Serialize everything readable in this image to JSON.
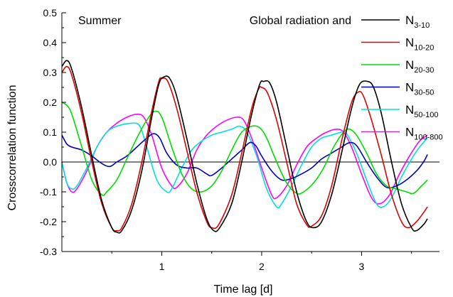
{
  "chart_data": {
    "type": "line",
    "title": "",
    "xlabel": "Time lag [d]",
    "ylabel": "Crosscorrelation function",
    "xlim": [
      0,
      3.78
    ],
    "ylim": [
      -0.3,
      0.5
    ],
    "xticks": [
      1,
      2,
      3
    ],
    "xtick_labels": [
      "1",
      "2",
      "3"
    ],
    "yticks": [
      -0.3,
      -0.2,
      -0.1,
      0.0,
      0.1,
      0.2,
      0.3,
      0.4,
      0.5
    ],
    "ytick_labels": [
      "-0.3",
      "-0.2",
      "-0.1",
      "0.0",
      "0.1",
      "0.2",
      "0.3",
      "0.4",
      "0.5"
    ],
    "zero_line": true,
    "grid": false,
    "legend": {
      "placement": "top-right",
      "heading": "Global radiation and"
    },
    "annotation": "Summer",
    "series": [
      {
        "name": "N",
        "name_sub": "3-10",
        "color": "#000000",
        "points": [
          [
            0,
            0.32
          ],
          [
            0.05,
            0.34
          ],
          [
            0.1,
            0.31
          ],
          [
            0.2,
            0.18
          ],
          [
            0.3,
            0.02
          ],
          [
            0.4,
            -0.13
          ],
          [
            0.5,
            -0.22
          ],
          [
            0.55,
            -0.235
          ],
          [
            0.6,
            -0.23
          ],
          [
            0.7,
            -0.16
          ],
          [
            0.8,
            -0.03
          ],
          [
            0.9,
            0.15
          ],
          [
            0.97,
            0.26
          ],
          [
            1.02,
            0.285
          ],
          [
            1.08,
            0.28
          ],
          [
            1.15,
            0.22
          ],
          [
            1.25,
            0.08
          ],
          [
            1.35,
            -0.07
          ],
          [
            1.45,
            -0.19
          ],
          [
            1.52,
            -0.23
          ],
          [
            1.58,
            -0.22
          ],
          [
            1.7,
            -0.14
          ],
          [
            1.8,
            0.0
          ],
          [
            1.9,
            0.16
          ],
          [
            1.98,
            0.26
          ],
          [
            2.02,
            0.27
          ],
          [
            2.08,
            0.265
          ],
          [
            2.15,
            0.2
          ],
          [
            2.25,
            0.05
          ],
          [
            2.35,
            -0.1
          ],
          [
            2.45,
            -0.2
          ],
          [
            2.52,
            -0.22
          ],
          [
            2.6,
            -0.2
          ],
          [
            2.7,
            -0.11
          ],
          [
            2.8,
            0.03
          ],
          [
            2.9,
            0.18
          ],
          [
            2.98,
            0.26
          ],
          [
            3.06,
            0.27
          ],
          [
            3.12,
            0.25
          ],
          [
            3.2,
            0.16
          ],
          [
            3.3,
            0.0
          ],
          [
            3.4,
            -0.14
          ],
          [
            3.5,
            -0.22
          ],
          [
            3.55,
            -0.23
          ],
          [
            3.62,
            -0.21
          ],
          [
            3.66,
            -0.19
          ]
        ]
      },
      {
        "name": "N",
        "name_sub": "10-20",
        "color": "#e00000",
        "points": [
          [
            0,
            0.3
          ],
          [
            0.05,
            0.32
          ],
          [
            0.1,
            0.29
          ],
          [
            0.2,
            0.16
          ],
          [
            0.3,
            0.0
          ],
          [
            0.4,
            -0.14
          ],
          [
            0.5,
            -0.22
          ],
          [
            0.55,
            -0.23
          ],
          [
            0.6,
            -0.22
          ],
          [
            0.7,
            -0.14
          ],
          [
            0.8,
            0.0
          ],
          [
            0.9,
            0.17
          ],
          [
            0.97,
            0.27
          ],
          [
            1.0,
            0.28
          ],
          [
            1.06,
            0.27
          ],
          [
            1.15,
            0.18
          ],
          [
            1.25,
            0.04
          ],
          [
            1.35,
            -0.1
          ],
          [
            1.45,
            -0.2
          ],
          [
            1.5,
            -0.22
          ],
          [
            1.57,
            -0.21
          ],
          [
            1.7,
            -0.11
          ],
          [
            1.8,
            0.03
          ],
          [
            1.9,
            0.18
          ],
          [
            1.97,
            0.245
          ],
          [
            2.0,
            0.25
          ],
          [
            2.06,
            0.23
          ],
          [
            2.15,
            0.14
          ],
          [
            2.25,
            0.0
          ],
          [
            2.35,
            -0.14
          ],
          [
            2.45,
            -0.21
          ],
          [
            2.5,
            -0.215
          ],
          [
            2.6,
            -0.18
          ],
          [
            2.7,
            -0.08
          ],
          [
            2.8,
            0.07
          ],
          [
            2.9,
            0.2
          ],
          [
            2.97,
            0.235
          ],
          [
            3.02,
            0.22
          ],
          [
            3.1,
            0.14
          ],
          [
            3.2,
            0.02
          ],
          [
            3.3,
            -0.11
          ],
          [
            3.4,
            -0.2
          ],
          [
            3.47,
            -0.22
          ],
          [
            3.55,
            -0.2
          ],
          [
            3.62,
            -0.17
          ],
          [
            3.66,
            -0.15
          ]
        ]
      },
      {
        "name": "N",
        "name_sub": "20-30",
        "color": "#00dd00",
        "points": [
          [
            0,
            0.2
          ],
          [
            0.05,
            0.19
          ],
          [
            0.1,
            0.16
          ],
          [
            0.2,
            0.05
          ],
          [
            0.3,
            -0.06
          ],
          [
            0.4,
            -0.11
          ],
          [
            0.45,
            -0.1
          ],
          [
            0.55,
            -0.06
          ],
          [
            0.65,
            0.01
          ],
          [
            0.75,
            0.08
          ],
          [
            0.85,
            0.14
          ],
          [
            0.93,
            0.17
          ],
          [
            1.0,
            0.15
          ],
          [
            1.1,
            0.05
          ],
          [
            1.2,
            -0.04
          ],
          [
            1.3,
            -0.09
          ],
          [
            1.4,
            -0.1
          ],
          [
            1.5,
            -0.08
          ],
          [
            1.6,
            -0.03
          ],
          [
            1.7,
            0.04
          ],
          [
            1.8,
            0.1
          ],
          [
            1.9,
            0.12
          ],
          [
            1.98,
            0.115
          ],
          [
            2.05,
            0.08
          ],
          [
            2.15,
            0.0
          ],
          [
            2.25,
            -0.07
          ],
          [
            2.35,
            -0.105
          ],
          [
            2.42,
            -0.1
          ],
          [
            2.52,
            -0.07
          ],
          [
            2.62,
            -0.02
          ],
          [
            2.72,
            0.05
          ],
          [
            2.82,
            0.1
          ],
          [
            2.88,
            0.11
          ],
          [
            2.95,
            0.09
          ],
          [
            3.05,
            0.03
          ],
          [
            3.15,
            -0.04
          ],
          [
            3.25,
            -0.08
          ],
          [
            3.35,
            -0.09
          ],
          [
            3.45,
            -0.1
          ],
          [
            3.52,
            -0.105
          ],
          [
            3.6,
            -0.08
          ],
          [
            3.66,
            -0.06
          ]
        ]
      },
      {
        "name": "N",
        "name_sub": "30-50",
        "color": "#0000c0",
        "points": [
          [
            0,
            0.09
          ],
          [
            0.05,
            0.06
          ],
          [
            0.1,
            0.05
          ],
          [
            0.2,
            0.04
          ],
          [
            0.3,
            0.02
          ],
          [
            0.4,
            -0.005
          ],
          [
            0.48,
            -0.015
          ],
          [
            0.55,
            0.0
          ],
          [
            0.65,
            0.02
          ],
          [
            0.75,
            0.05
          ],
          [
            0.85,
            0.08
          ],
          [
            0.92,
            0.095
          ],
          [
            0.98,
            0.08
          ],
          [
            1.05,
            0.03
          ],
          [
            1.15,
            -0.01
          ],
          [
            1.25,
            -0.02
          ],
          [
            1.35,
            -0.02
          ],
          [
            1.45,
            -0.04
          ],
          [
            1.5,
            -0.045
          ],
          [
            1.6,
            -0.02
          ],
          [
            1.7,
            0.01
          ],
          [
            1.8,
            0.04
          ],
          [
            1.88,
            0.065
          ],
          [
            1.94,
            0.055
          ],
          [
            2.0,
            0.02
          ],
          [
            2.1,
            -0.03
          ],
          [
            2.2,
            -0.06
          ],
          [
            2.3,
            -0.055
          ],
          [
            2.4,
            -0.04
          ],
          [
            2.5,
            -0.02
          ],
          [
            2.6,
            0.01
          ],
          [
            2.7,
            0.03
          ],
          [
            2.8,
            0.05
          ],
          [
            2.88,
            0.065
          ],
          [
            2.95,
            0.055
          ],
          [
            3.05,
            0.0
          ],
          [
            3.15,
            -0.05
          ],
          [
            3.25,
            -0.085
          ],
          [
            3.35,
            -0.08
          ],
          [
            3.45,
            -0.06
          ],
          [
            3.55,
            -0.03
          ],
          [
            3.62,
            0.0
          ],
          [
            3.66,
            0.025
          ]
        ]
      },
      {
        "name": "N",
        "name_sub": "50-100",
        "color": "#00e0e0",
        "points": [
          [
            0,
            0.0
          ],
          [
            0.05,
            -0.07
          ],
          [
            0.1,
            -0.09
          ],
          [
            0.15,
            -0.08
          ],
          [
            0.25,
            -0.02
          ],
          [
            0.35,
            0.05
          ],
          [
            0.45,
            0.1
          ],
          [
            0.55,
            0.12
          ],
          [
            0.7,
            0.13
          ],
          [
            0.78,
            0.12
          ],
          [
            0.85,
            0.05
          ],
          [
            0.95,
            -0.06
          ],
          [
            1.05,
            -0.1
          ],
          [
            1.1,
            -0.09
          ],
          [
            1.2,
            -0.02
          ],
          [
            1.3,
            0.04
          ],
          [
            1.4,
            0.07
          ],
          [
            1.5,
            0.09
          ],
          [
            1.6,
            0.1
          ],
          [
            1.7,
            0.11
          ],
          [
            1.78,
            0.12
          ],
          [
            1.85,
            0.1
          ],
          [
            1.95,
            0.02
          ],
          [
            2.05,
            -0.09
          ],
          [
            2.15,
            -0.15
          ],
          [
            2.2,
            -0.14
          ],
          [
            2.3,
            -0.08
          ],
          [
            2.4,
            -0.01
          ],
          [
            2.5,
            0.05
          ],
          [
            2.6,
            0.08
          ],
          [
            2.7,
            0.09
          ],
          [
            2.8,
            0.1
          ],
          [
            2.85,
            0.095
          ],
          [
            2.95,
            0.03
          ],
          [
            3.05,
            -0.06
          ],
          [
            3.15,
            -0.14
          ],
          [
            3.22,
            -0.15
          ],
          [
            3.3,
            -0.12
          ],
          [
            3.4,
            -0.05
          ],
          [
            3.5,
            0.01
          ],
          [
            3.58,
            0.05
          ],
          [
            3.66,
            0.08
          ]
        ]
      },
      {
        "name": "N",
        "name_sub": "100-800",
        "color": "#ff00ff",
        "points": [
          [
            0,
            0.0
          ],
          [
            0.05,
            -0.07
          ],
          [
            0.1,
            -0.1
          ],
          [
            0.15,
            -0.09
          ],
          [
            0.25,
            -0.03
          ],
          [
            0.35,
            0.05
          ],
          [
            0.45,
            0.1
          ],
          [
            0.55,
            0.13
          ],
          [
            0.65,
            0.15
          ],
          [
            0.75,
            0.16
          ],
          [
            0.82,
            0.15
          ],
          [
            0.9,
            0.09
          ],
          [
            1.0,
            -0.02
          ],
          [
            1.1,
            -0.08
          ],
          [
            1.15,
            -0.085
          ],
          [
            1.25,
            -0.04
          ],
          [
            1.35,
            0.04
          ],
          [
            1.45,
            0.09
          ],
          [
            1.55,
            0.12
          ],
          [
            1.65,
            0.14
          ],
          [
            1.75,
            0.15
          ],
          [
            1.82,
            0.14
          ],
          [
            1.9,
            0.08
          ],
          [
            2.0,
            -0.02
          ],
          [
            2.1,
            -0.11
          ],
          [
            2.15,
            -0.12
          ],
          [
            2.25,
            -0.08
          ],
          [
            2.35,
            -0.01
          ],
          [
            2.45,
            0.05
          ],
          [
            2.55,
            0.08
          ],
          [
            2.65,
            0.1
          ],
          [
            2.75,
            0.11
          ],
          [
            2.82,
            0.1
          ],
          [
            2.9,
            0.05
          ],
          [
            3.0,
            -0.04
          ],
          [
            3.1,
            -0.12
          ],
          [
            3.18,
            -0.14
          ],
          [
            3.28,
            -0.11
          ],
          [
            3.38,
            -0.04
          ],
          [
            3.48,
            0.02
          ],
          [
            3.58,
            0.07
          ],
          [
            3.66,
            0.09
          ]
        ]
      }
    ]
  }
}
